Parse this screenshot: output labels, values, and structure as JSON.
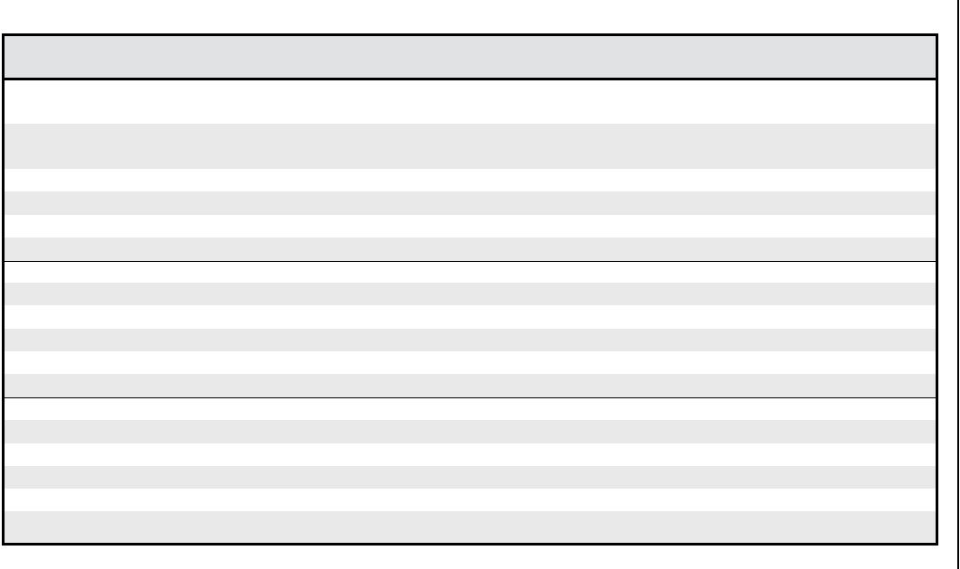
{
  "colors": {
    "header_bg": "#e1e2e4",
    "row_odd": "#ffffff",
    "row_even": "#e9e9e9",
    "border": "#000000"
  }
}
